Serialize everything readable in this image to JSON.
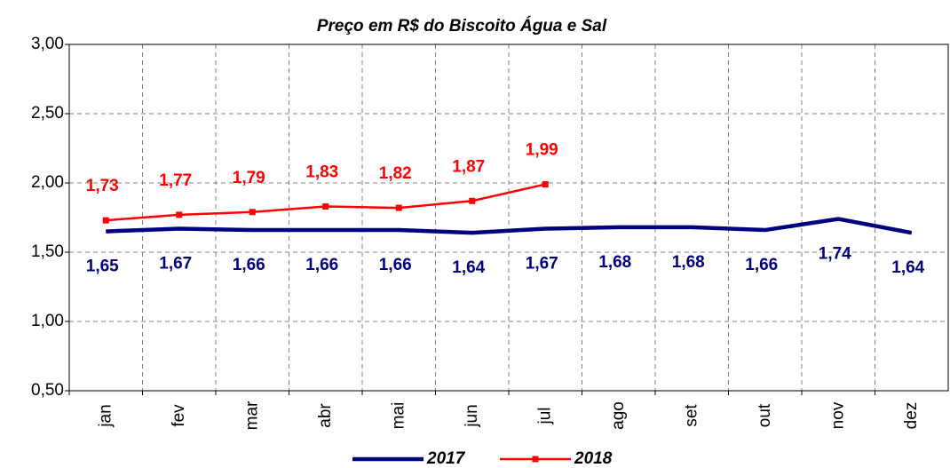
{
  "chart_data": {
    "type": "line",
    "title": "Preço em R$ do Biscoito Água e Sal",
    "categories": [
      "jan",
      "fev",
      "mar",
      "abr",
      "mai",
      "jun",
      "jul",
      "ago",
      "set",
      "out",
      "nov",
      "dez"
    ],
    "series": [
      {
        "name": "2017",
        "color": "#000080",
        "values": [
          1.65,
          1.67,
          1.66,
          1.66,
          1.66,
          1.64,
          1.67,
          1.68,
          1.68,
          1.66,
          1.74,
          1.64
        ],
        "value_labels": [
          "1,65",
          "1,67",
          "1,66",
          "1,66",
          "1,66",
          "1,64",
          "1,67",
          "1,68",
          "1,68",
          "1,66",
          "1,74",
          "1,64"
        ]
      },
      {
        "name": "2018",
        "color": "#ff0000",
        "values": [
          1.73,
          1.77,
          1.79,
          1.83,
          1.82,
          1.87,
          1.99,
          null,
          null,
          null,
          null,
          null
        ],
        "value_labels": [
          "1,73",
          "1,77",
          "1,79",
          "1,83",
          "1,82",
          "1,87",
          "1,99",
          null,
          null,
          null,
          null,
          null
        ]
      }
    ],
    "ylim": [
      0.5,
      3.0
    ],
    "yticks": [
      {
        "value": 0.5,
        "label": "0,50"
      },
      {
        "value": 1.0,
        "label": "1,00"
      },
      {
        "value": 1.5,
        "label": "1,50"
      },
      {
        "value": 2.0,
        "label": "2,00"
      },
      {
        "value": 2.5,
        "label": "2,50"
      },
      {
        "value": 3.0,
        "label": "3,00"
      }
    ],
    "grid": true,
    "legend": "bottom"
  }
}
